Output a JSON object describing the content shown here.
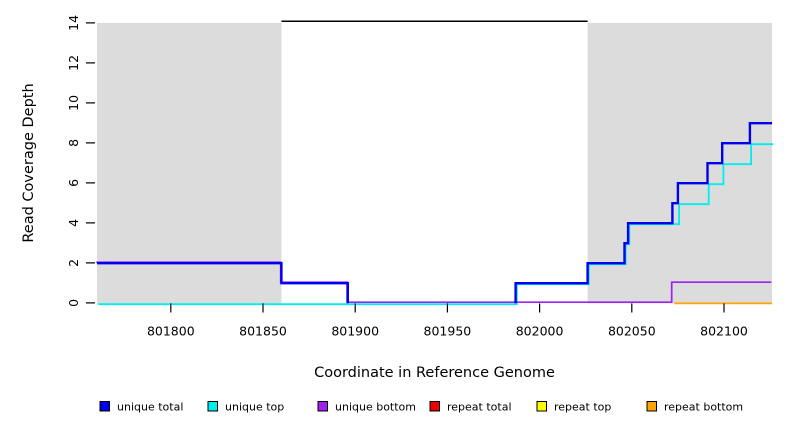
{
  "figure": {
    "background": "#FFFFFF"
  },
  "chart_data": {
    "type": "line",
    "line_style": "step",
    "title": "",
    "xlabel": "Coordinate in Reference Genome",
    "ylabel": "Read Coverage Depth",
    "xlim": [
      801760,
      802126
    ],
    "ylim": [
      0,
      14.4
    ],
    "x_ticks": [
      801800,
      801850,
      801900,
      801950,
      802000,
      802050,
      802100
    ],
    "y_ticks": [
      0,
      2,
      4,
      6,
      8,
      10,
      12,
      14
    ],
    "grid": false,
    "legend_position": "bottom",
    "repeat_region_color": "#DCDCDC",
    "repeat_regions": [
      {
        "x0": 801760,
        "x1": 801860,
        "y0": 0,
        "y1": 14
      },
      {
        "x0": 802026,
        "x1": 802126,
        "y0": 0,
        "y1": 14
      }
    ],
    "top_line": {
      "y": 14,
      "x0": 801860,
      "x1": 802026,
      "color": "#000000"
    },
    "series": [
      {
        "name": "unique total",
        "color": "#0000EE",
        "width": 2.4,
        "dx": 0,
        "dy": 0.3,
        "segments": [
          [
            [
              801760,
              2
            ],
            [
              801860,
              1
            ],
            [
              801896,
              0
            ]
          ],
          [
            [
              801987,
              0
            ],
            [
              801987,
              1
            ],
            [
              802026,
              2
            ],
            [
              802046,
              3
            ],
            [
              802048,
              4
            ],
            [
              802072,
              5
            ],
            [
              802075,
              6
            ],
            [
              802091,
              7
            ],
            [
              802099,
              8
            ],
            [
              802114,
              9
            ],
            [
              802126,
              9
            ]
          ]
        ]
      },
      {
        "name": "unique top",
        "color": "#00EEEE",
        "width": 1.8,
        "dx": 1.2,
        "dy": 1.3,
        "segments": [
          [
            [
              801760,
              0
            ],
            [
              801987,
              1
            ],
            [
              802026,
              2
            ],
            [
              802046,
              3
            ],
            [
              802048,
              4
            ],
            [
              802075,
              5
            ],
            [
              802091,
              6
            ],
            [
              802099,
              7
            ],
            [
              802114,
              8
            ],
            [
              802126,
              8
            ]
          ]
        ]
      },
      {
        "name": "unique bottom",
        "color": "#A020F0",
        "width": 1.7,
        "dx": -0.7,
        "dy": -0.7,
        "segments": [
          [
            [
              801760,
              2
            ],
            [
              801860,
              1
            ],
            [
              801896,
              0
            ],
            [
              802072,
              1
            ],
            [
              802126,
              1
            ]
          ]
        ]
      },
      {
        "name": "repeat total",
        "color": "#EE0000",
        "width": 1.7,
        "dx": 0,
        "dy": 0,
        "segments": []
      },
      {
        "name": "repeat top",
        "color": "#FFFF00",
        "width": 1.7,
        "dx": 0,
        "dy": 0,
        "segments": []
      },
      {
        "name": "repeat bottom",
        "color": "#FFA500",
        "width": 1.8,
        "dx": 0,
        "dy": 0.5,
        "segments": [
          [
            [
              802073,
              0
            ],
            [
              802126,
              0
            ]
          ]
        ]
      }
    ],
    "draw_order": [
      "repeat total",
      "repeat top",
      "repeat bottom",
      "unique top",
      "unique bottom",
      "unique total"
    ]
  }
}
